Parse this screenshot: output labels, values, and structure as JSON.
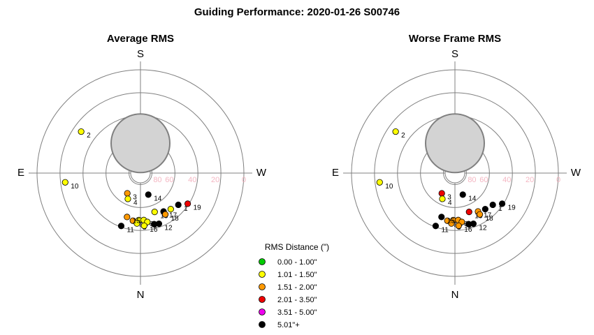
{
  "title": "Guiding Performance: 2020-01-26 S00746",
  "directions": {
    "top": "S",
    "bottom": "N",
    "left": "E",
    "right": "W"
  },
  "altitude_ticks": [
    "80",
    "60",
    "40",
    "20",
    "0"
  ],
  "legend": {
    "title": "RMS Distance (\")",
    "items": [
      {
        "label": "0.00 - 1.00\"",
        "color": "#00cc00"
      },
      {
        "label": "1.01 - 1.50\"",
        "color": "#ffff00"
      },
      {
        "label": "1.51 - 2.00\"",
        "color": "#ff9900"
      },
      {
        "label": "2.01 - 3.50\"",
        "color": "#ee0000"
      },
      {
        "label": "3.51 - 5.00\"",
        "color": "#ee00ee"
      },
      {
        "label": "5.01\"+",
        "color": "#000000"
      }
    ]
  },
  "chart_data": [
    {
      "type": "scatter",
      "projection": "polar alt-az (altitude rings 80,60,40,20,0; S at top)",
      "title": "Average RMS",
      "moon": {
        "az": 180,
        "alt": 64
      },
      "points": [
        {
          "label": "2",
          "az": 125,
          "alt": 27,
          "color": "#ffff00"
        },
        {
          "label": "3",
          "az": 33,
          "alt": 69,
          "color": "#ff9900"
        },
        {
          "label": "4",
          "az": 26,
          "alt": 65,
          "color": "#ffff00"
        },
        {
          "label": "5",
          "az": 2,
          "alt": 49,
          "color": "#ffff00"
        },
        {
          "label": "6",
          "az": 356,
          "alt": 49,
          "color": "#ffff00"
        },
        {
          "label": "7",
          "az": 9,
          "alt": 48,
          "color": "#ff9900"
        },
        {
          "label": "8",
          "az": 4,
          "alt": 46,
          "color": "#ffff00"
        },
        {
          "label": "9",
          "az": 352,
          "alt": 47,
          "color": "#ffff00"
        },
        {
          "label": "10",
          "az": 83,
          "alt": 24,
          "color": "#ffff00"
        },
        {
          "label": "11",
          "az": 20,
          "alt": 41,
          "color": "#000000"
        },
        {
          "label": "12",
          "az": 340,
          "alt": 43,
          "color": "#000000"
        },
        {
          "label": "13",
          "az": 340,
          "alt": 54,
          "color": "#ffff00"
        },
        {
          "label": "14",
          "az": 340,
          "alt": 70,
          "color": "#000000"
        },
        {
          "label": "15",
          "az": 17,
          "alt": 50,
          "color": "#ff9900"
        },
        {
          "label": "16",
          "az": 356,
          "alt": 44,
          "color": "#ffff00"
        },
        {
          "label": "17",
          "az": 329,
          "alt": 51,
          "color": "#000000"
        },
        {
          "label": "18",
          "az": 329,
          "alt": 48,
          "color": "#ff9900"
        },
        {
          "label": "19",
          "az": 303,
          "alt": 41,
          "color": "#ee0000"
        },
        {
          "label": "1",
          "az": 310,
          "alt": 47,
          "color": "#000000"
        },
        {
          "label": "",
          "az": 345,
          "alt": 44,
          "color": "#000000"
        },
        {
          "label": "",
          "az": 320,
          "alt": 49,
          "color": "#ffff00"
        }
      ]
    },
    {
      "type": "scatter",
      "projection": "polar alt-az (altitude rings 80,60,40,20,0; S at top)",
      "title": "Worse Frame RMS",
      "moon": {
        "az": 180,
        "alt": 64
      },
      "points": [
        {
          "label": "2",
          "az": 125,
          "alt": 27,
          "color": "#ffff00"
        },
        {
          "label": "3",
          "az": 33,
          "alt": 69,
          "color": "#ee0000"
        },
        {
          "label": "4",
          "az": 26,
          "alt": 65,
          "color": "#ffff00"
        },
        {
          "label": "5",
          "az": 2,
          "alt": 49,
          "color": "#ff9900"
        },
        {
          "label": "6",
          "az": 356,
          "alt": 49,
          "color": "#ff9900"
        },
        {
          "label": "7",
          "az": 9,
          "alt": 48,
          "color": "#ff9900"
        },
        {
          "label": "8",
          "az": 4,
          "alt": 46,
          "color": "#ff9900"
        },
        {
          "label": "9",
          "az": 352,
          "alt": 47,
          "color": "#ff9900"
        },
        {
          "label": "10",
          "az": 83,
          "alt": 24,
          "color": "#ffff00"
        },
        {
          "label": "11",
          "az": 20,
          "alt": 41,
          "color": "#000000"
        },
        {
          "label": "12",
          "az": 340,
          "alt": 43,
          "color": "#000000"
        },
        {
          "label": "13",
          "az": 340,
          "alt": 54,
          "color": "#ee0000"
        },
        {
          "label": "14",
          "az": 340,
          "alt": 70,
          "color": "#000000"
        },
        {
          "label": "15",
          "az": 17,
          "alt": 50,
          "color": "#000000"
        },
        {
          "label": "16",
          "az": 356,
          "alt": 44,
          "color": "#ff9900"
        },
        {
          "label": "17",
          "az": 329,
          "alt": 51,
          "color": "#ff9900"
        },
        {
          "label": "18",
          "az": 329,
          "alt": 48,
          "color": "#ff9900"
        },
        {
          "label": "19",
          "az": 303,
          "alt": 41,
          "color": "#000000"
        },
        {
          "label": "1",
          "az": 310,
          "alt": 47,
          "color": "#000000"
        },
        {
          "label": "",
          "az": 345,
          "alt": 44,
          "color": "#000000"
        },
        {
          "label": "",
          "az": 320,
          "alt": 49,
          "color": "#000000"
        }
      ]
    }
  ]
}
